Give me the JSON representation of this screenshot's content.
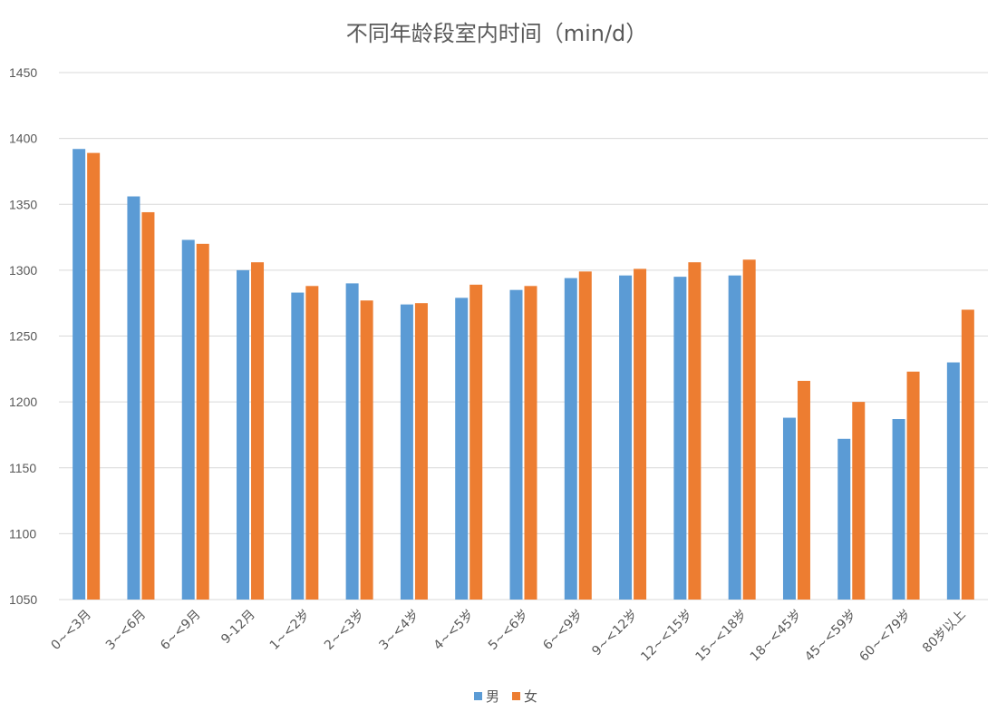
{
  "chart_data": {
    "type": "bar",
    "title": "不同年龄段室内时间（min/d）",
    "categories": [
      "0~<3月",
      "3~<6月",
      "6~<9月",
      "9-12月",
      "1~<2岁",
      "2~<3岁",
      "3~<4岁",
      "4~<5岁",
      "5~<6岁",
      "6~<9岁",
      "9~<12岁",
      "12~<15岁",
      "15~<18岁",
      "18~<45岁",
      "45~<59岁",
      "60~<79岁",
      "80岁以上"
    ],
    "series": [
      {
        "name": "男",
        "color": "#5b9bd5",
        "values": [
          1392,
          1356,
          1323,
          1300,
          1283,
          1290,
          1274,
          1279,
          1285,
          1294,
          1296,
          1295,
          1296,
          1188,
          1172,
          1187,
          1230
        ]
      },
      {
        "name": "女",
        "color": "#ed7d31",
        "values": [
          1389,
          1344,
          1320,
          1306,
          1288,
          1277,
          1275,
          1289,
          1288,
          1299,
          1301,
          1306,
          1308,
          1216,
          1200,
          1223,
          1270
        ]
      }
    ],
    "ylim": [
      1050,
      1450
    ],
    "yticks": [
      1050,
      1100,
      1150,
      1200,
      1250,
      1300,
      1350,
      1400,
      1450
    ],
    "grid": true,
    "legend_position": "bottom",
    "xlabel": "",
    "ylabel": ""
  }
}
